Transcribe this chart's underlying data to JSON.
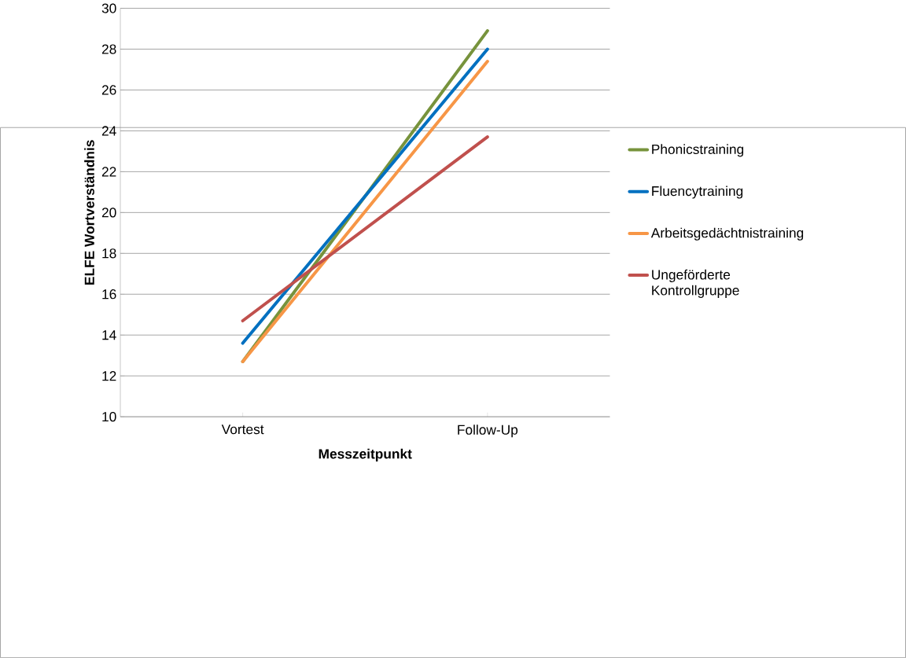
{
  "chart_data": {
    "type": "line",
    "xlabel": "Messzeitpunkt",
    "ylabel": "ELFE Wortverständnis",
    "categories": [
      "Vortest",
      "Follow-Up"
    ],
    "series": [
      {
        "name": "Phonicstraining",
        "color": "#77933c",
        "values": [
          12.7,
          28.9
        ]
      },
      {
        "name": "Fluencytraining",
        "color": "#0070c0",
        "values": [
          13.6,
          28.0
        ]
      },
      {
        "name": "Arbeitsgedächtnistraining",
        "color": "#f79646",
        "values": [
          12.7,
          27.4
        ]
      },
      {
        "name": "Ungeförderte Kontrollgruppe",
        "color": "#c0504d",
        "values": [
          14.7,
          23.7
        ]
      }
    ],
    "ylim": [
      10,
      30
    ],
    "yticks": [
      10,
      12,
      14,
      16,
      18,
      20,
      22,
      24,
      26,
      28,
      30
    ],
    "grid": "y",
    "legend": "right",
    "marker": "none",
    "line_style": "solid"
  }
}
